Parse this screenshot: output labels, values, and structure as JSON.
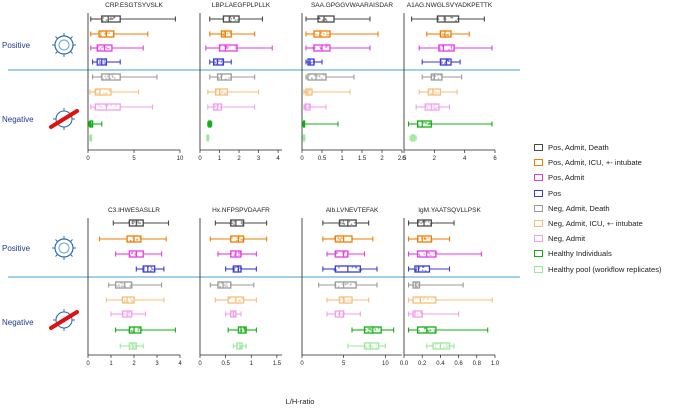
{
  "chart_data": {
    "type": "box",
    "x_axis_label": "L/H-ratio",
    "group_labels": {
      "positive": "Positive",
      "negative": "Negative"
    },
    "legend": [
      {
        "name": "Pos, Admit, Death",
        "color": "#4a4a4a"
      },
      {
        "name": "Pos, Admit, ICU, +- intubate",
        "color": "#f07d00"
      },
      {
        "name": "Pos, Admit",
        "color": "#e83be0"
      },
      {
        "name": "Pos",
        "color": "#3b3bd6"
      },
      {
        "name": "Neg, Admit, Death",
        "color": "#9a9a9a"
      },
      {
        "name": "Neg, Admit, ICU, +- intubate",
        "color": "#f4bf7a"
      },
      {
        "name": "Neg, Admit",
        "color": "#f0a0ea"
      },
      {
        "name": "Healthy Individuals",
        "color": "#10b010"
      },
      {
        "name": "Healthy pool (workflow replicates)",
        "color": "#9ee89e"
      }
    ],
    "panels": [
      {
        "title": "CRP.ESGTSYVSLK",
        "xlim": [
          0,
          10
        ],
        "ticks": [
          "0",
          "5",
          "10"
        ],
        "boxes": [
          [
            0.3,
            1.5,
            2.2,
            3.5,
            9.5
          ],
          [
            0.3,
            1.2,
            2.0,
            2.8,
            6.5
          ],
          [
            0.3,
            1.0,
            1.8,
            2.6,
            6.0
          ],
          [
            0.5,
            1.0,
            1.5,
            2.0,
            3.5
          ],
          [
            0.5,
            1.5,
            2.3,
            3.5,
            7.5
          ],
          [
            0.2,
            0.8,
            1.3,
            2.5,
            5.5
          ],
          [
            0.3,
            0.8,
            2.0,
            3.5,
            7.0
          ],
          [
            0.1,
            0.2,
            0.3,
            0.5,
            1.5
          ],
          [
            0.2,
            0.25,
            0.3,
            0.35,
            0.4
          ]
        ]
      },
      {
        "title": "LBP.LAEGFPLPLLK",
        "xlim": [
          0,
          4.2
        ],
        "ticks": [
          "0",
          "1",
          "2",
          "3",
          "4"
        ],
        "boxes": [
          [
            0.5,
            1.2,
            1.5,
            2.0,
            3.2
          ],
          [
            0.5,
            1.1,
            1.3,
            1.6,
            2.8
          ],
          [
            0.3,
            1.0,
            1.3,
            1.9,
            3.7
          ],
          [
            0.5,
            0.7,
            0.9,
            1.2,
            1.6
          ],
          [
            0.5,
            0.9,
            1.1,
            1.6,
            2.8
          ],
          [
            0.4,
            0.8,
            1.0,
            1.4,
            3.0
          ],
          [
            0.4,
            0.7,
            0.9,
            1.1,
            2.8
          ],
          [
            0.4,
            0.45,
            0.5,
            0.55,
            0.6
          ],
          [
            0.35,
            0.38,
            0.4,
            0.42,
            0.45
          ]
        ]
      },
      {
        "title": "SAA.GPGGVWAARAISDAR",
        "xlim": [
          0,
          2.5
        ],
        "ticks": [
          "0",
          "0.5",
          "1",
          "1.5",
          "2",
          "2.5"
        ],
        "boxes": [
          [
            0.1,
            0.4,
            0.55,
            0.8,
            1.7
          ],
          [
            0.1,
            0.3,
            0.45,
            0.7,
            1.9
          ],
          [
            0.1,
            0.3,
            0.5,
            0.7,
            1.7
          ],
          [
            0.1,
            0.15,
            0.2,
            0.3,
            0.5
          ],
          [
            0.1,
            0.15,
            0.35,
            0.6,
            1.3
          ],
          [
            0.05,
            0.1,
            0.15,
            0.25,
            1.2
          ],
          [
            0.05,
            0.08,
            0.1,
            0.2,
            0.6
          ],
          [
            0.02,
            0.04,
            0.05,
            0.06,
            0.9
          ],
          [
            0.03,
            0.04,
            0.05,
            0.06,
            0.07
          ]
        ]
      },
      {
        "title": "A1AG.NWGLSVYADKPETTK",
        "xlim": [
          0,
          6
        ],
        "ticks": [
          "0",
          "2",
          "4",
          "6"
        ],
        "boxes": [
          [
            0.5,
            2.2,
            2.7,
            3.6,
            5.3
          ],
          [
            1.5,
            2.4,
            2.7,
            3.1,
            4.3
          ],
          [
            1.0,
            2.3,
            2.6,
            3.3,
            5.8
          ],
          [
            1.2,
            2.4,
            2.8,
            3.1,
            3.7
          ],
          [
            1.2,
            1.8,
            2.0,
            2.5,
            3.8
          ],
          [
            1.0,
            1.6,
            1.9,
            2.4,
            3.5
          ],
          [
            0.8,
            1.4,
            1.8,
            2.3,
            3.0
          ],
          [
            0.3,
            0.9,
            1.2,
            1.8,
            5.8
          ],
          [
            0.4,
            0.5,
            0.6,
            0.7,
            0.8
          ]
        ]
      },
      {
        "title": "C3.IHWESASLLR",
        "xlim": [
          0,
          4
        ],
        "ticks": [
          "0",
          "1",
          "2",
          "3",
          "4"
        ],
        "boxes": [
          [
            1.1,
            1.8,
            2.1,
            2.4,
            3.5
          ],
          [
            0.5,
            1.7,
            2.0,
            2.3,
            3.4
          ],
          [
            1.2,
            1.8,
            2.1,
            2.4,
            3.2
          ],
          [
            2.1,
            2.4,
            2.6,
            2.9,
            3.3
          ],
          [
            0.9,
            1.2,
            1.6,
            1.9,
            3.2
          ],
          [
            0.8,
            1.5,
            1.7,
            2.0,
            3.3
          ],
          [
            1.0,
            1.5,
            1.7,
            1.9,
            2.5
          ],
          [
            1.2,
            1.8,
            2.0,
            2.3,
            3.8
          ],
          [
            1.4,
            1.8,
            1.95,
            2.1,
            2.4
          ]
        ]
      },
      {
        "title": "Hx.NFPSPVDAAFR",
        "xlim": [
          0,
          1.6
        ],
        "ticks": [
          "0",
          "0.5",
          "1",
          "1.5"
        ],
        "boxes": [
          [
            0.3,
            0.6,
            0.7,
            0.85,
            1.3
          ],
          [
            0.2,
            0.6,
            0.75,
            0.85,
            1.3
          ],
          [
            0.35,
            0.6,
            0.7,
            0.8,
            1.1
          ],
          [
            0.5,
            0.65,
            0.75,
            0.8,
            1.1
          ],
          [
            0.2,
            0.35,
            0.45,
            0.6,
            1.05
          ],
          [
            0.3,
            0.55,
            0.7,
            0.85,
            1.1
          ],
          [
            0.5,
            0.6,
            0.65,
            0.7,
            0.8
          ],
          [
            0.55,
            0.75,
            0.8,
            0.9,
            1.1
          ],
          [
            0.65,
            0.72,
            0.78,
            0.82,
            0.9
          ]
        ]
      },
      {
        "title": "Alb.LVNEVTEFAK",
        "xlim": [
          0,
          12
        ],
        "ticks": [
          "0",
          "5",
          "10"
        ],
        "boxes": [
          [
            2.5,
            4.5,
            5.5,
            6.5,
            8.0
          ],
          [
            2.5,
            4.0,
            5.0,
            6.0,
            8.5
          ],
          [
            3.0,
            4.0,
            5.0,
            5.5,
            7.5
          ],
          [
            2.5,
            4.0,
            5.5,
            7.0,
            9.0
          ],
          [
            2.0,
            4.0,
            5.0,
            6.5,
            9.0
          ],
          [
            3.0,
            4.5,
            5.0,
            6.0,
            8.0
          ],
          [
            3.0,
            4.0,
            4.5,
            5.0,
            7.0
          ],
          [
            6.0,
            7.5,
            8.5,
            9.5,
            11.0
          ],
          [
            5.5,
            7.5,
            8.2,
            9.2,
            10.0
          ]
        ]
      },
      {
        "title": "IgM.YAATSQVLLPSK",
        "xlim": [
          0,
          1.0
        ],
        "ticks": [
          "0.0",
          "0.2",
          "0.4",
          "0.6",
          "0.8",
          "1.0"
        ],
        "boxes": [
          [
            0.05,
            0.15,
            0.22,
            0.3,
            0.55
          ],
          [
            0.05,
            0.15,
            0.2,
            0.3,
            0.5
          ],
          [
            0.05,
            0.15,
            0.25,
            0.35,
            0.85
          ],
          [
            0.05,
            0.12,
            0.16,
            0.28,
            0.5
          ],
          [
            0.05,
            0.1,
            0.13,
            0.17,
            0.65
          ],
          [
            0.05,
            0.1,
            0.18,
            0.35,
            0.97
          ],
          [
            0.05,
            0.1,
            0.12,
            0.2,
            0.6
          ],
          [
            0.05,
            0.15,
            0.25,
            0.35,
            0.92
          ],
          [
            0.25,
            0.32,
            0.4,
            0.5,
            0.55
          ]
        ]
      }
    ]
  }
}
